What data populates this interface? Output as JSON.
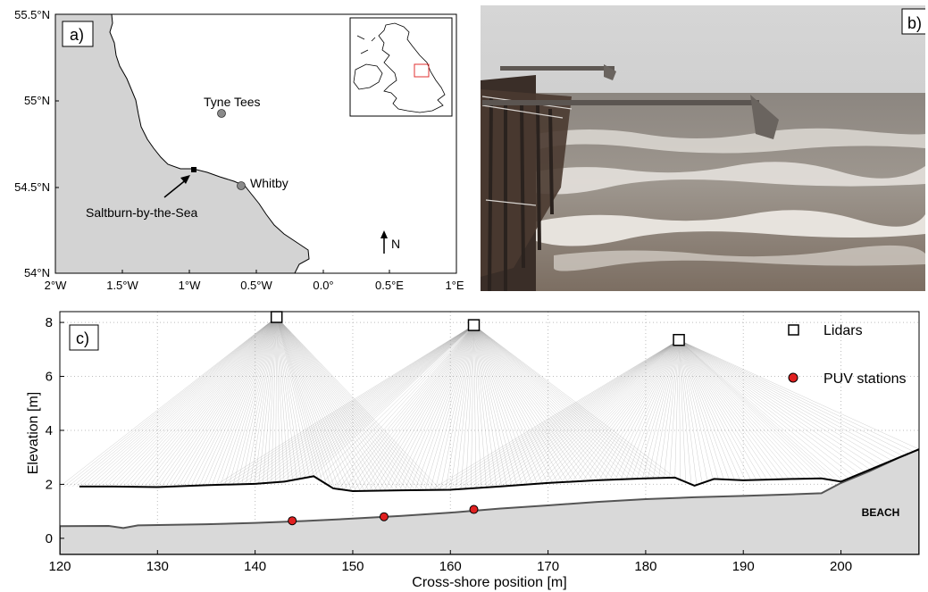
{
  "panel_a": {
    "label": "a)",
    "y_ticks": [
      "55.5°N",
      "55°N",
      "54.5°N",
      "54°N"
    ],
    "x_ticks": [
      "2°W",
      "1.5°W",
      "1°W",
      "0.5°W",
      "0.0°",
      "0.5°E",
      "1°E"
    ],
    "places": [
      {
        "name": "Tyne Tees",
        "kind": "station"
      },
      {
        "name": "Whitby",
        "kind": "station"
      },
      {
        "name": "Saltburn-by-the-Sea",
        "kind": "site"
      }
    ],
    "north_label": "N"
  },
  "panel_b": {
    "label": "b)"
  },
  "panel_c": {
    "label": "c)",
    "ylabel": "Elevation [m]",
    "xlabel": "Cross-shore position [m]",
    "beach_label": "BEACH",
    "legend": [
      {
        "label": "Lidars",
        "marker": "open-square"
      },
      {
        "label": "PUV stations",
        "marker": "red-dot"
      }
    ],
    "colors": {
      "puv": "#e02020",
      "beach": "#d9d9d9",
      "rays": "#9a9a9a"
    }
  },
  "chart_data": {
    "type": "scatter",
    "xlim": [
      120,
      208
    ],
    "ylim": [
      -0.6,
      8.4
    ],
    "x_ticks": [
      120,
      130,
      140,
      150,
      160,
      170,
      180,
      190,
      200
    ],
    "y_ticks": [
      0,
      2,
      4,
      6,
      8
    ],
    "grid": true,
    "legend_position": "top-right",
    "series": [
      {
        "name": "Lidars",
        "x": [
          142.2,
          162.4,
          183.4
        ],
        "y": [
          8.2,
          7.9,
          7.35
        ]
      },
      {
        "name": "PUV stations",
        "x": [
          143.8,
          153.2,
          162.4
        ],
        "y": [
          0.65,
          0.8,
          1.07
        ]
      }
    ],
    "bed_profile": {
      "x": [
        120,
        125,
        126.5,
        128,
        135,
        140,
        145,
        150,
        155,
        160,
        165,
        170,
        175,
        180,
        185,
        190,
        195,
        198,
        200,
        203,
        206,
        208
      ],
      "y": [
        0.45,
        0.46,
        0.38,
        0.48,
        0.52,
        0.57,
        0.64,
        0.73,
        0.83,
        0.95,
        1.1,
        1.22,
        1.35,
        1.45,
        1.52,
        1.57,
        1.63,
        1.67,
        2.05,
        2.5,
        3.0,
        3.3
      ]
    },
    "water_surface": {
      "x": [
        122,
        125,
        130,
        135,
        140,
        143,
        146,
        148,
        150,
        155,
        160,
        165,
        170,
        175,
        180,
        183,
        185,
        187,
        190,
        195,
        198,
        200,
        203,
        206,
        208
      ],
      "y": [
        1.92,
        1.92,
        1.9,
        1.97,
        2.02,
        2.1,
        2.3,
        1.85,
        1.75,
        1.78,
        1.8,
        1.92,
        2.05,
        2.15,
        2.22,
        2.25,
        1.95,
        2.2,
        2.15,
        2.2,
        2.22,
        2.1,
        2.55,
        3.0,
        3.3
      ]
    },
    "lidar_scan_ranges": [
      {
        "x_from": 120,
        "x_to": 159
      },
      {
        "x_from": 136,
        "x_to": 183
      },
      {
        "x_from": 158,
        "x_to": 208
      }
    ]
  }
}
